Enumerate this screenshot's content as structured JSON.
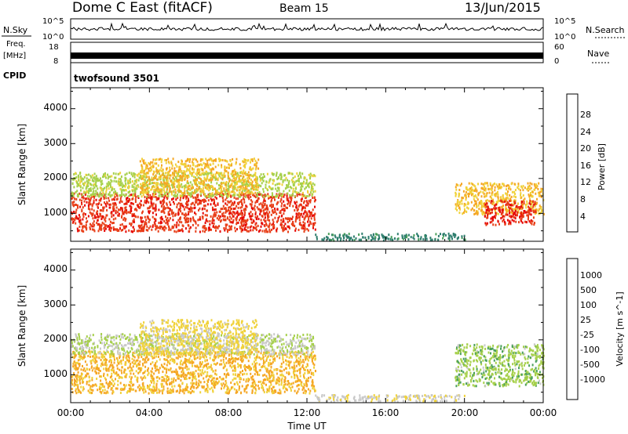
{
  "header": {
    "site": "Dome C East (fitACF)",
    "beam": "Beam 15",
    "date": "13/Jun/2015"
  },
  "status_panels": {
    "nsky_label": "N.Sky",
    "nsearch_label": "N.Search",
    "nsky_ticks": [
      "10^5",
      "10^0"
    ],
    "nsearch_ticks": [
      "10^5",
      "10^0"
    ],
    "freq_label_1": "Freq.",
    "freq_label_2": "[MHz]",
    "freq_ticks": [
      "18",
      "8"
    ],
    "nave_label": "Nave",
    "nave_ticks": [
      "60",
      "0"
    ],
    "cpid_label": "CPID",
    "cpid_value": "twofsound 3501"
  },
  "colors": {
    "power_scale": [
      "#1f1ff0",
      "#2050a0",
      "#2e7e6e",
      "#4aa05a",
      "#a6d04a",
      "#f0d23a",
      "#f5a623",
      "#f07a1a",
      "#e8401a",
      "#e60000"
    ],
    "velocity_scale": [
      "#e60000",
      "#f05010",
      "#f08020",
      "#f5a623",
      "#f0d23a",
      "#c8c8c8",
      "#a6d04a",
      "#4aa05a",
      "#2e7e6e",
      "#2050a0",
      "#1f1ff0"
    ],
    "ground_scatter": "#a0a0a0"
  },
  "chart_data": [
    {
      "type": "heatmap",
      "name": "power",
      "ylabel": "Slant Range [km]",
      "xlabel": "Time UT",
      "x_ticks": [
        "00:00",
        "04:00",
        "08:00",
        "12:00",
        "16:00",
        "20:00",
        "00:00"
      ],
      "y_ticks": [
        "1000",
        "2000",
        "3000",
        "4000"
      ],
      "ylim": [
        200,
        4600
      ],
      "xlim_hours": [
        0,
        24
      ],
      "colorbar_label": "Power [dB]",
      "colorbar_ticks": [
        "4",
        "8",
        "12",
        "16",
        "20",
        "24",
        "28"
      ],
      "range": [
        0,
        30
      ],
      "patches": [
        {
          "t0": 0.0,
          "t1": 12.4,
          "r0": 500,
          "r1": 1600,
          "value": 26
        },
        {
          "t0": 0.0,
          "t1": 12.4,
          "r0": 1500,
          "r1": 2200,
          "value": 14
        },
        {
          "t0": 3.5,
          "t1": 9.5,
          "r0": 1600,
          "r1": 2600,
          "value": 18
        },
        {
          "t0": 12.4,
          "t1": 20.0,
          "r0": 250,
          "r1": 450,
          "value": 8
        },
        {
          "t0": 19.5,
          "t1": 24.0,
          "r0": 1000,
          "r1": 1900,
          "value": 18
        },
        {
          "t0": 21.0,
          "t1": 23.6,
          "r0": 700,
          "r1": 1400,
          "value": 27
        }
      ]
    },
    {
      "type": "heatmap",
      "name": "velocity",
      "ylabel": "Slant Range [km]",
      "xlabel": "Time UT",
      "x_ticks": [
        "00:00",
        "04:00",
        "08:00",
        "12:00",
        "16:00",
        "20:00",
        "00:00"
      ],
      "y_ticks": [
        "1000",
        "2000",
        "3000",
        "4000"
      ],
      "ylim": [
        200,
        4600
      ],
      "xlim_hours": [
        0,
        24
      ],
      "colorbar_label": "Velocity [m s^-1]",
      "colorbar_ticks": [
        "1000",
        "500",
        "100",
        "25",
        "-25",
        "-100",
        "-500",
        "-1000"
      ],
      "range": [
        -1000,
        1000
      ],
      "patches": [
        {
          "t0": 0.0,
          "t1": 12.4,
          "r0": 500,
          "r1": 1700,
          "value": -300
        },
        {
          "t0": 0.0,
          "t1": 12.4,
          "r0": 1600,
          "r1": 2200,
          "value": 100
        },
        {
          "t0": 3.5,
          "t1": 9.5,
          "r0": 1600,
          "r1": 2600,
          "value": -150
        },
        {
          "t0": 12.4,
          "t1": 20.0,
          "r0": 250,
          "r1": 450,
          "value": -60
        },
        {
          "t0": 19.5,
          "t1": 24.0,
          "r0": 700,
          "r1": 1900,
          "value": 200
        }
      ]
    }
  ]
}
